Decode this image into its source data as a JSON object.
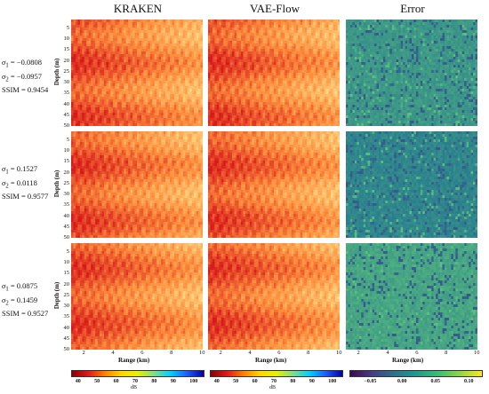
{
  "columns": [
    "KRAKEN",
    "VAE-Flow",
    "Error"
  ],
  "rows": [
    {
      "s1_sym": "σ",
      "s1_sub": "1",
      "s1_val": " = −0.0808",
      "s2_sym": "σ",
      "s2_sub": "2",
      "s2_val": " = −0.0957",
      "ssim": "SSIM = 0.9454"
    },
    {
      "s1_sym": "σ",
      "s1_sub": "1",
      "s1_val": " = 0.1527",
      "s2_sym": "σ",
      "s2_sub": "2",
      "s2_val": " = 0.0118",
      "ssim": "SSIM = 0.9577"
    },
    {
      "s1_sym": "σ",
      "s1_sub": "1",
      "s1_val": " = 0.0875",
      "s2_sym": "σ",
      "s2_sub": "2",
      "s2_val": " = 0.1459",
      "ssim": "SSIM = 0.9527"
    }
  ],
  "axes": {
    "ylabel": "Depth (m)",
    "xlabel": "Range (km)",
    "yticks": [
      "5",
      "10",
      "15",
      "20",
      "25",
      "30",
      "35",
      "40",
      "45",
      "50"
    ],
    "xticks": [
      "2",
      "4",
      "6",
      "8",
      "10"
    ]
  },
  "colorbars": [
    {
      "ticks": [
        "40",
        "50",
        "60",
        "70",
        "80",
        "90",
        "100"
      ],
      "unit": "dB"
    },
    {
      "ticks": [
        "40",
        "50",
        "60",
        "70",
        "80",
        "90",
        "100"
      ],
      "unit": "dB"
    },
    {
      "ticks": [
        "−0.05",
        "0.00",
        "0.05",
        "0.10"
      ],
      "unit": ""
    }
  ],
  "colors": {
    "tl_low": "#d7191c",
    "tl_mid": "#fd8d3c",
    "tl_high": "#fee08b",
    "err_base": "#2a7f8e",
    "err_light": "#5ec47a",
    "err_dark": "#3b4f8c"
  },
  "chart_data": {
    "type": "heatmap",
    "title": "",
    "columns": [
      "KRAKEN",
      "VAE-Flow",
      "Error"
    ],
    "xlabel": "Range (km)",
    "ylabel": "Depth (m)",
    "xlim": [
      1,
      10
    ],
    "ylim": [
      50,
      1
    ],
    "x_ticks": [
      2,
      4,
      6,
      8,
      10
    ],
    "y_ticks": [
      5,
      10,
      15,
      20,
      25,
      30,
      35,
      40,
      45,
      50
    ],
    "colorbar_tl": {
      "unit": "dB",
      "range": [
        35,
        105
      ],
      "ticks": [
        40,
        50,
        60,
        70,
        80,
        90,
        100
      ],
      "colormap": "jet"
    },
    "colorbar_error": {
      "range": [
        -0.08,
        0.12
      ],
      "ticks": [
        -0.05,
        0.0,
        0.05,
        0.1
      ],
      "colormap": "viridis"
    },
    "samples": [
      {
        "sigma1": -0.0808,
        "sigma2": -0.0957,
        "SSIM": 0.9454,
        "tl_range_dB": [
          45,
          65
        ],
        "error_typical": [
          0.0,
          0.05
        ]
      },
      {
        "sigma1": 0.1527,
        "sigma2": 0.0118,
        "SSIM": 0.9577,
        "tl_range_dB": [
          45,
          65
        ],
        "error_typical": [
          -0.02,
          0.04
        ]
      },
      {
        "sigma1": 0.0875,
        "sigma2": 0.1459,
        "SSIM": 0.9527,
        "tl_range_dB": [
          45,
          65
        ],
        "error_typical": [
          0.0,
          0.06
        ]
      }
    ]
  }
}
